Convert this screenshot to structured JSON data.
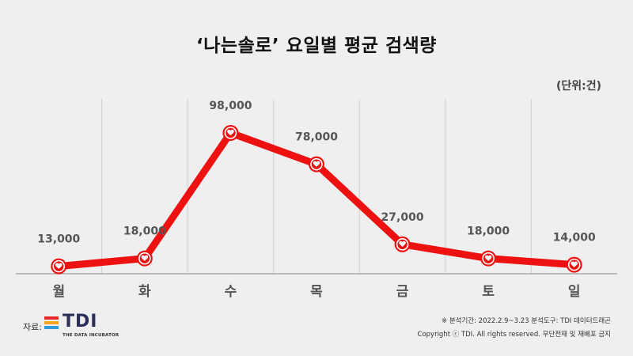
{
  "title": "‘나는솔로’ 요일별 평균 검색량",
  "unit_label": "(단위:건)",
  "chart_data": {
    "type": "line",
    "categories": [
      "월",
      "화",
      "수",
      "목",
      "금",
      "토",
      "일"
    ],
    "values": [
      13000,
      18000,
      98000,
      78000,
      27000,
      18000,
      14000
    ],
    "value_labels": [
      "13,000",
      "18,000",
      "98,000",
      "78,000",
      "27,000",
      "18,000",
      "14,000"
    ],
    "title": "‘나는솔로’ 요일별 평균 검색량",
    "xlabel": "",
    "ylabel": "",
    "line_color": "#ee1111",
    "grid": "vertical"
  },
  "footer": {
    "source_label": "자료:",
    "logo_text": "TDI",
    "logo_subtext": "THE DATA INCUBATOR",
    "logo_colors": [
      "#e8262a",
      "#f5a31a",
      "#2f9bd7"
    ],
    "note_period": "※ 분석기간: 2022.2.9~3.23 분석도구: TDI 데이터드래곤",
    "note_copyright": "Copyright ⓒ TDI. All rights reserved. 무단전재 및 재배포 금지"
  }
}
